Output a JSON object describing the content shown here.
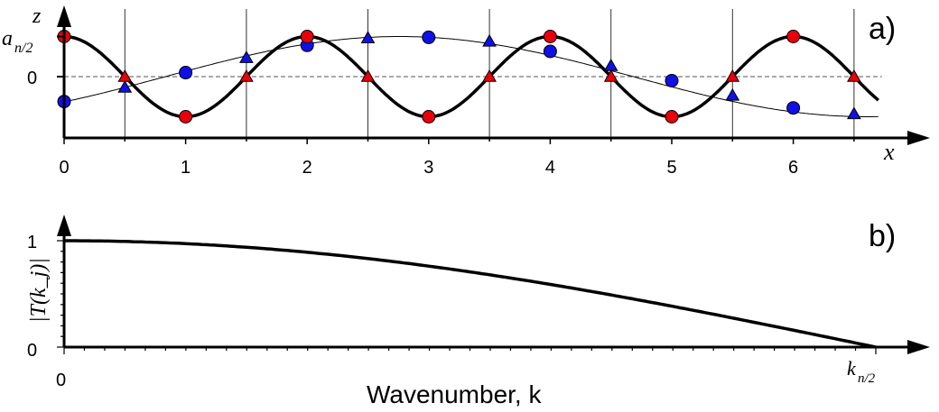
{
  "chart_data": [
    {
      "type": "line",
      "panel_label": "a)",
      "ylabel": "z",
      "xlabel": "x",
      "xlim": [
        0,
        6.7
      ],
      "ylim": [
        -1.5,
        1.5
      ],
      "x_ticks": [
        0,
        1,
        2,
        3,
        4,
        5,
        6
      ],
      "y_tick_labels": [
        "a",
        "n/2",
        "0"
      ],
      "series": [
        {
          "role": "nyquist-cosine",
          "color": "#000000",
          "samples": {
            "x": [
              0,
              1,
              2,
              3,
              4,
              5,
              6
            ],
            "y": [
              1,
              -1,
              1,
              -1,
              1,
              -1,
              1
            ],
            "marker": "circle",
            "color": "#e8000b"
          },
          "zero_crossings": {
            "x": [
              0.5,
              1.5,
              2.5,
              3.5,
              4.5,
              5.5,
              6.5
            ],
            "y": [
              0,
              0,
              0,
              0,
              0,
              0,
              0
            ],
            "marker": "triangle",
            "color": "#e8000b"
          }
        },
        {
          "role": "long-wave",
          "color": "#000000",
          "samples": {
            "x": [
              0,
              1,
              2,
              3,
              4,
              5,
              6
            ],
            "y": [
              -0.62,
              0.1,
              0.78,
              0.98,
              0.63,
              -0.1,
              -0.78
            ],
            "marker": "circle",
            "color": "#1010e6"
          },
          "half_samples": {
            "x": [
              0.5,
              1.5,
              2.5,
              3.5,
              4.5,
              5.5,
              6.5
            ],
            "y": [
              -0.27,
              0.47,
              0.96,
              0.88,
              0.27,
              -0.47,
              -0.93
            ],
            "marker": "triangle",
            "color": "#1010e6"
          }
        }
      ],
      "vertical_grid_x": [
        0.5,
        1.5,
        2.5,
        3.5,
        4.5,
        5.5,
        6.5
      ],
      "zero_line": "dashed"
    },
    {
      "type": "line",
      "panel_label": "b)",
      "xlabel": "Wavenumber, k",
      "ylabel": "|T(k_j)|",
      "xlim": [
        0,
        1
      ],
      "ylim": [
        0,
        1.15
      ],
      "x_tick_labels": [
        "0",
        "k",
        "n/2"
      ],
      "y_ticks": [
        0,
        1
      ],
      "series": [
        {
          "name": "",
          "x": [
            0,
            0.1,
            0.2,
            0.3,
            0.4,
            0.5,
            0.6,
            0.7,
            0.8,
            0.9,
            1.0
          ],
          "y": [
            1.0,
            0.988,
            0.951,
            0.891,
            0.809,
            0.707,
            0.588,
            0.454,
            0.309,
            0.156,
            0.0
          ]
        }
      ]
    }
  ]
}
